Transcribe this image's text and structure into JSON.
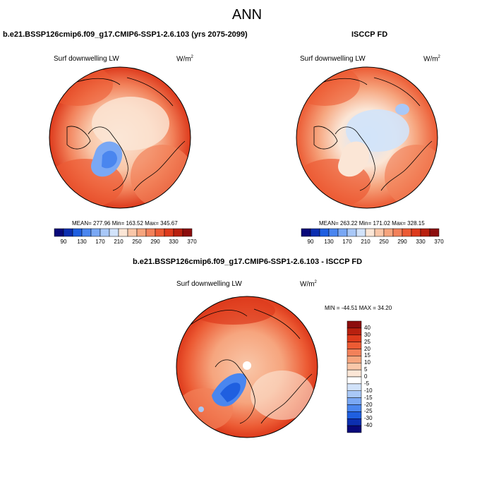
{
  "page_title": "ANN",
  "panels": [
    {
      "case_title": "b.e21.BSSP126cmip6.f09_g17.CMIP6-SSP1-2.6.103 (yrs 2075-2099)",
      "variable": "Surf downwelling LW",
      "units_base": "W/m",
      "units_exp": "2",
      "stats": "MEAN= 277.96  Min= 163.52  Max= 345.67"
    },
    {
      "case_title": "ISCCP FD",
      "variable": "Surf downwelling LW",
      "units_base": "W/m",
      "units_exp": "2",
      "stats": "MEAN= 263.22  Min= 171.02  Max= 328.15"
    },
    {
      "case_title": "b.e21.BSSP126cmip6.f09_g17.CMIP6-SSP1-2.6.103 - ISCCP FD",
      "variable": "Surf downwelling LW",
      "units_base": "W/m",
      "units_exp": "2",
      "stats": "MIN = -44.51 MAX =  34.20"
    }
  ],
  "colors": {
    "abs_scale": [
      "#08087a",
      "#0c2fb0",
      "#1f5fe0",
      "#4a86ef",
      "#7aa8f4",
      "#a9c8f7",
      "#d2e3fa",
      "#fbe6d6",
      "#f9c7a9",
      "#f6a57e",
      "#f2815a",
      "#ec5b34",
      "#dd3a1c",
      "#b8200f",
      "#8c0d0d"
    ],
    "diff_scale": [
      "#08087a",
      "#0c2fb0",
      "#1f5fe0",
      "#4a86ef",
      "#7aa8f4",
      "#a9c8f7",
      "#d2e3fa",
      "#ffffff",
      "#fbe6d6",
      "#f9c7a9",
      "#f6a57e",
      "#f2815a",
      "#ec5b34",
      "#dd3a1c",
      "#b8200f",
      "#8c0d0d"
    ]
  },
  "chart_data": [
    {
      "type": "heatmap",
      "title": "b.e21.BSSP126cmip6.f09_g17.CMIP6-SSP1-2.6.103 (yrs 2075-2099)",
      "projection": "north polar stereographic",
      "variable": "Surf downwelling LW",
      "units": "W/m2",
      "mean": 277.96,
      "min": 163.52,
      "max": 345.67,
      "colorbar_ticks": [
        "90",
        "130",
        "170",
        "210",
        "250",
        "290",
        "330",
        "370"
      ]
    },
    {
      "type": "heatmap",
      "title": "ISCCP FD",
      "projection": "north polar stereographic",
      "variable": "Surf downwelling LW",
      "units": "W/m2",
      "mean": 263.22,
      "min": 171.02,
      "max": 328.15,
      "colorbar_ticks": [
        "90",
        "130",
        "170",
        "210",
        "250",
        "290",
        "330",
        "370"
      ]
    },
    {
      "type": "heatmap",
      "title": "b.e21.BSSP126cmip6.f09_g17.CMIP6-SSP1-2.6.103 - ISCCP FD",
      "projection": "north polar stereographic",
      "variable": "Surf downwelling LW",
      "units": "W/m2",
      "min": -44.51,
      "max": 34.2,
      "colorbar_ticks": [
        "40",
        "30",
        "25",
        "20",
        "15",
        "10",
        "5",
        "0",
        "-5",
        "-10",
        "-15",
        "-20",
        "-25",
        "-30",
        "-40"
      ]
    }
  ]
}
